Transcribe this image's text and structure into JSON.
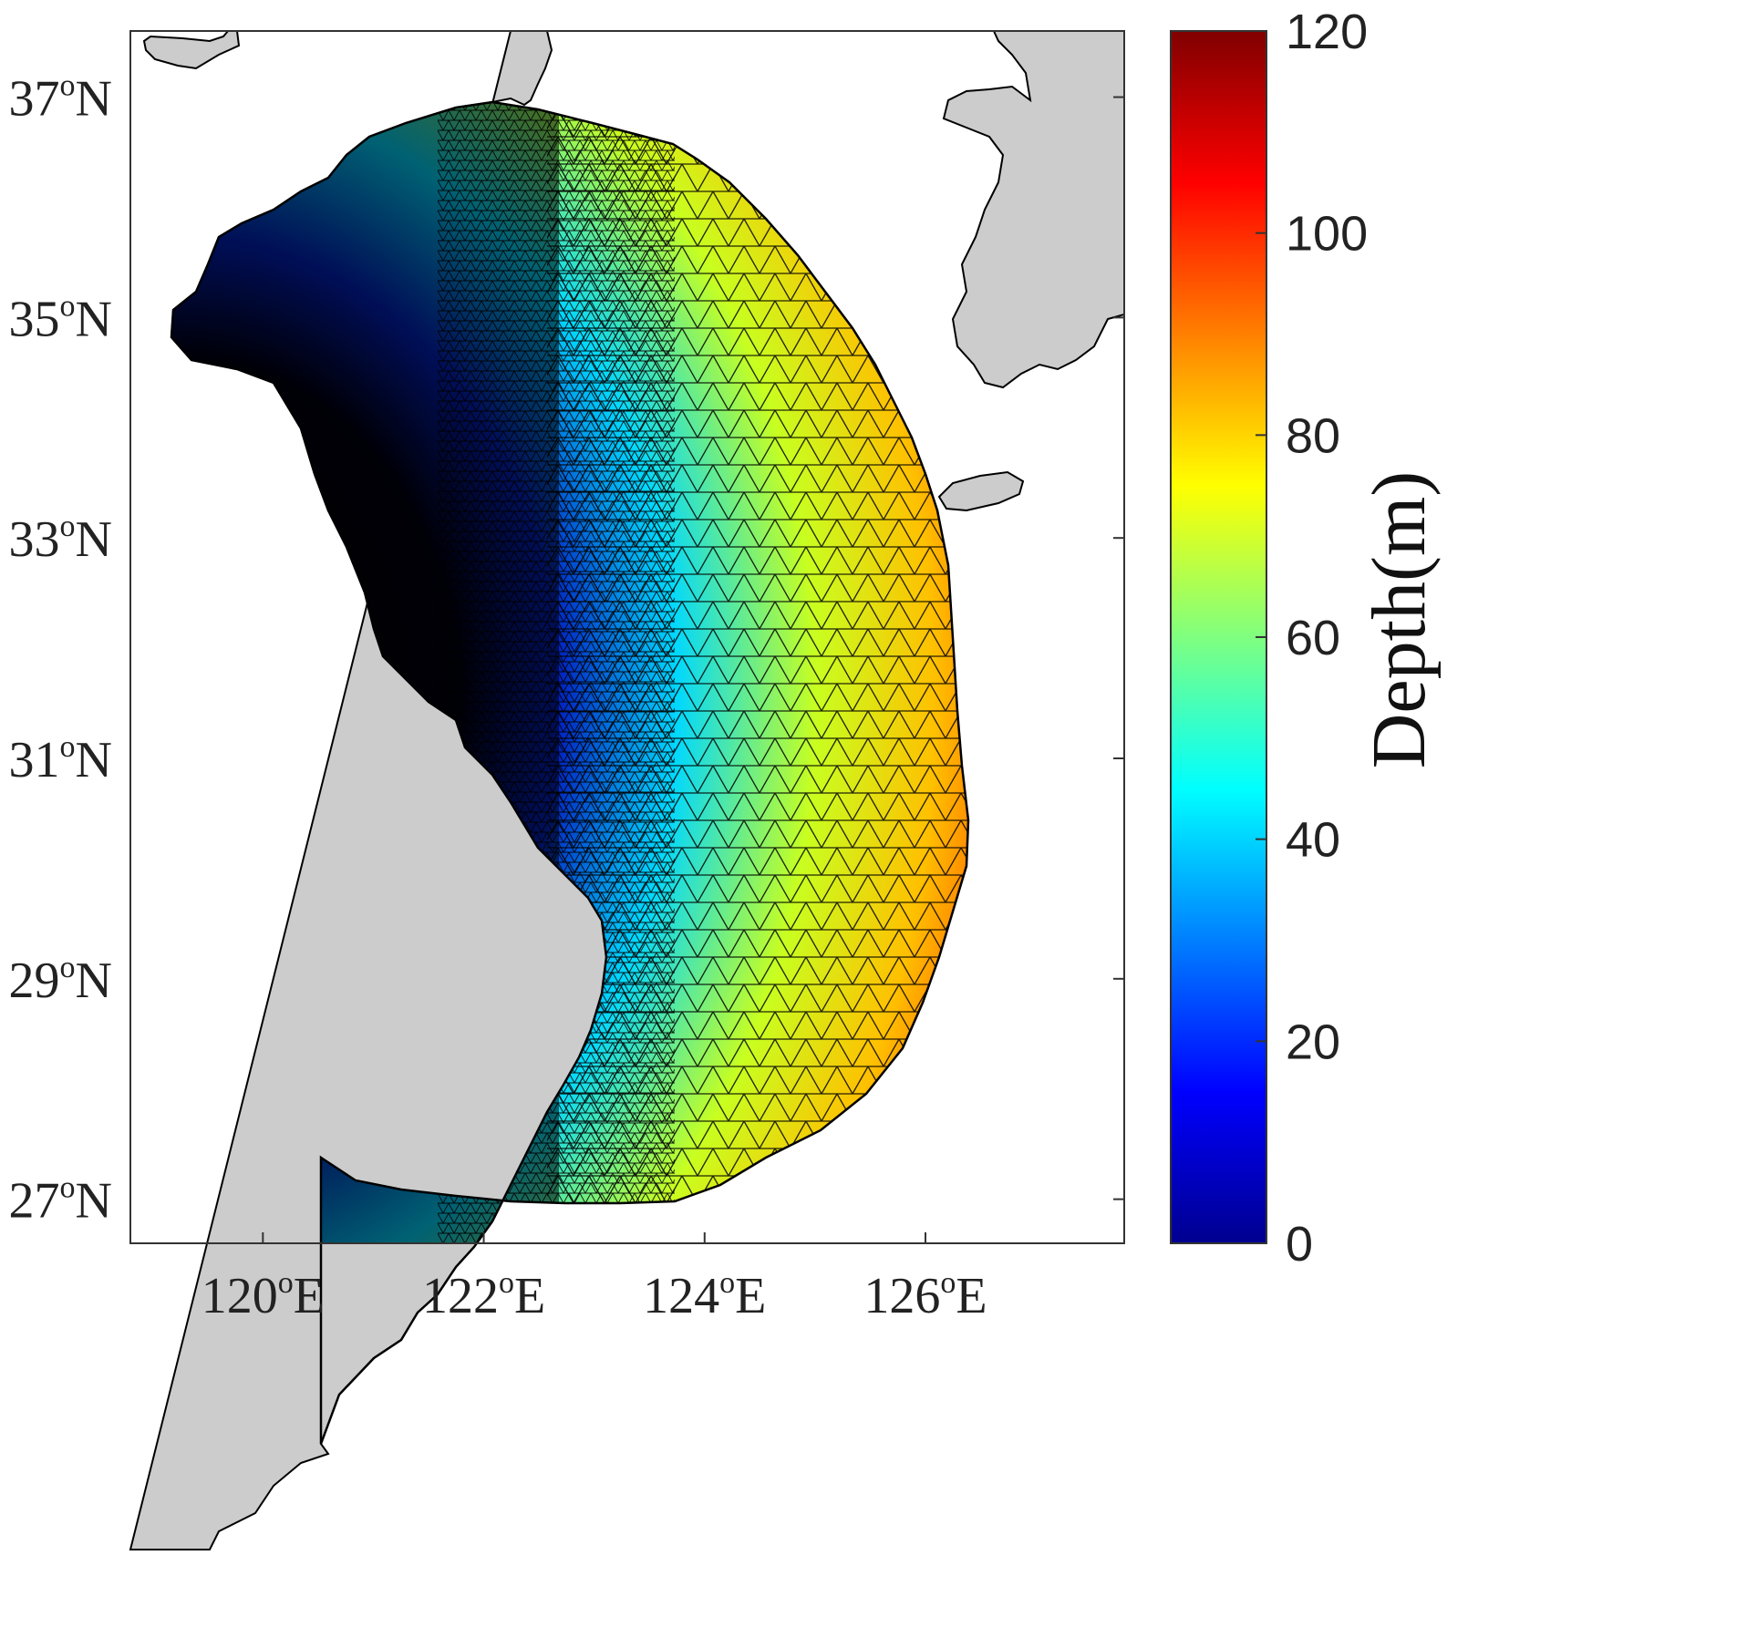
{
  "map": {
    "lat_ticks": [
      {
        "deg": "37",
        "sup": "o",
        "hemi": "N",
        "value": 37
      },
      {
        "deg": "35",
        "sup": "o",
        "hemi": "N",
        "value": 35
      },
      {
        "deg": "33",
        "sup": "o",
        "hemi": "N",
        "value": 33
      },
      {
        "deg": "31",
        "sup": "o",
        "hemi": "N",
        "value": 31
      },
      {
        "deg": "29",
        "sup": "o",
        "hemi": "N",
        "value": 29
      },
      {
        "deg": "27",
        "sup": "o",
        "hemi": "N",
        "value": 27
      }
    ],
    "lon_ticks": [
      {
        "deg": "120",
        "sup": "o",
        "hemi": "E",
        "value": 120
      },
      {
        "deg": "122",
        "sup": "o",
        "hemi": "E",
        "value": 122
      },
      {
        "deg": "124",
        "sup": "o",
        "hemi": "E",
        "value": 124
      },
      {
        "deg": "126",
        "sup": "o",
        "hemi": "E",
        "value": 126
      }
    ],
    "lon_range": [
      118.8,
      127.8
    ],
    "lat_range": [
      26.6,
      37.6
    ],
    "land_color": "#cccccc",
    "sea_color": "#ffffff",
    "mesh_edge_color": "#000000"
  },
  "colorbar": {
    "title": "Depth(m)",
    "ticks": [
      "0",
      "20",
      "40",
      "60",
      "80",
      "100",
      "120"
    ],
    "range": [
      0,
      120
    ],
    "colormap": "jet"
  }
}
